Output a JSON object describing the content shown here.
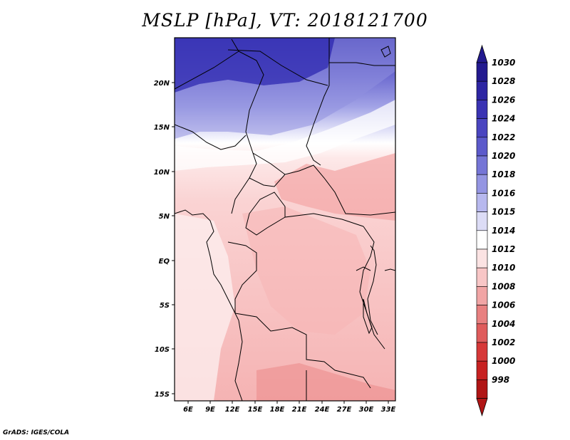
{
  "title": "MSLP [hPa], VT: 2018121700",
  "credit": "GrADS: IGES/COLA",
  "map": {
    "lon_ticks": [
      "6E",
      "9E",
      "12E",
      "15E",
      "18E",
      "21E",
      "24E",
      "27E",
      "30E",
      "33E"
    ],
    "lat_ticks": [
      "20N",
      "15N",
      "10N",
      "5N",
      "EQ",
      "5S",
      "10S",
      "15S"
    ]
  },
  "colorbar": {
    "labels": [
      "1030",
      "1028",
      "1026",
      "1024",
      "1022",
      "1020",
      "1018",
      "1016",
      "1015",
      "1014",
      "1012",
      "1010",
      "1008",
      "1006",
      "1004",
      "1002",
      "1000",
      "998"
    ],
    "colors": [
      "#231a8f",
      "#2d25a3",
      "#3a33b3",
      "#4a45c0",
      "#5c5acb",
      "#7575d6",
      "#9495e2",
      "#b7b8ee",
      "#dcdcf6",
      "#ffffff",
      "#fbe3e3",
      "#f8c6c6",
      "#f1a5a5",
      "#e88080",
      "#df5c5c",
      "#d63838",
      "#c72222",
      "#b01515"
    ]
  }
}
